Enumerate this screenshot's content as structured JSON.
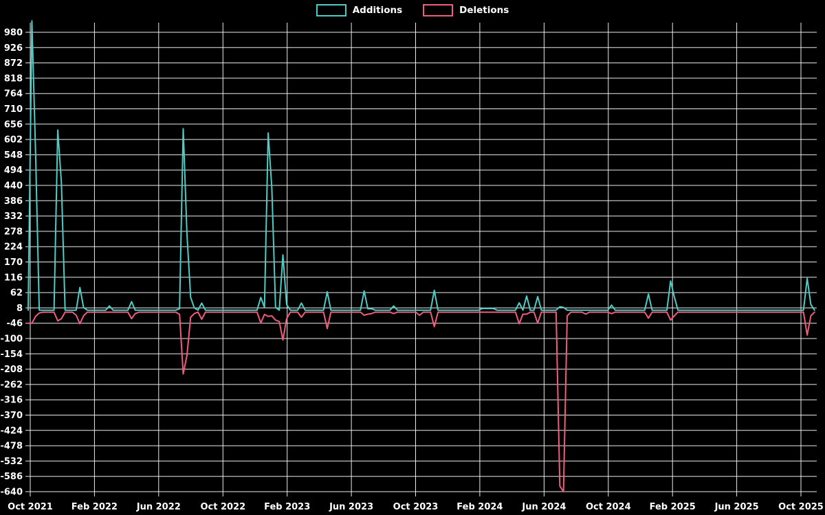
{
  "legend": {
    "items": [
      {
        "label": "Additions",
        "color": "#4ecdc6"
      },
      {
        "label": "Deletions",
        "color": "#f25c7d"
      }
    ]
  },
  "chart_data": {
    "type": "line",
    "title": "",
    "background": "#000000",
    "grid": true,
    "grid_color": "#ececec",
    "text_color": "#ffffff",
    "legend_position": "top",
    "x_axis": {
      "tick_labels": [
        "Oct 2021",
        "Feb 2022",
        "Jun 2022",
        "Oct 2022",
        "Feb 2023",
        "Jun 2023",
        "Oct 2023",
        "Feb 2024",
        "Jun 2024",
        "Oct 2024",
        "Feb 2025",
        "Jun 2025",
        "Oct 2025"
      ]
    },
    "y_axis": {
      "max": 980,
      "min": -640,
      "step": 54
    },
    "weeks_total": 214,
    "baseline": {
      "additions": 0,
      "deletions": -7
    },
    "series": [
      {
        "name": "Additions",
        "color": "#4ecdc6",
        "points": {
          "1": 1020,
          "2": 560,
          "3": 0,
          "8": 635,
          "9": 450,
          "14": 80,
          "15": 10,
          "22": 15,
          "28": 30,
          "29": 0,
          "41": 5,
          "42": 640,
          "43": 270,
          "44": 45,
          "45": 8,
          "47": 25,
          "63": 45,
          "64": 10,
          "65": 625,
          "66": 430,
          "67": 10,
          "69": 195,
          "70": 20,
          "74": 25,
          "81": 65,
          "91": 68,
          "92": 5,
          "93": 5,
          "99": 15,
          "110": 70,
          "123": 6,
          "124": 6,
          "125": 6,
          "126": 6,
          "133": 26,
          "135": 50,
          "138": 48,
          "144": 12,
          "145": 10,
          "158": 18,
          "168": 57,
          "174": 103,
          "175": 47,
          "211": 112,
          "212": 20
        }
      },
      {
        "name": "Deletions",
        "color": "#f25c7d",
        "points": {
          "0": -46,
          "1": -46,
          "2": -22,
          "3": -10,
          "8": -38,
          "9": -30,
          "13": -18,
          "14": -48,
          "15": -20,
          "28": -30,
          "29": -12,
          "41": -15,
          "42": -225,
          "43": -160,
          "44": -25,
          "45": -12,
          "47": -32,
          "63": -45,
          "64": -15,
          "65": -22,
          "66": -20,
          "67": -35,
          "68": -40,
          "69": -105,
          "70": -30,
          "74": -25,
          "81": -65,
          "91": -18,
          "92": -14,
          "93": -12,
          "99": -12,
          "106": -18,
          "110": -58,
          "133": -48,
          "134": -14,
          "135": -14,
          "138": -46,
          "144": -620,
          "145": -640,
          "146": -20,
          "151": -14,
          "158": -12,
          "168": -28,
          "174": -35,
          "175": -20,
          "211": -88,
          "212": -20
        }
      }
    ]
  }
}
